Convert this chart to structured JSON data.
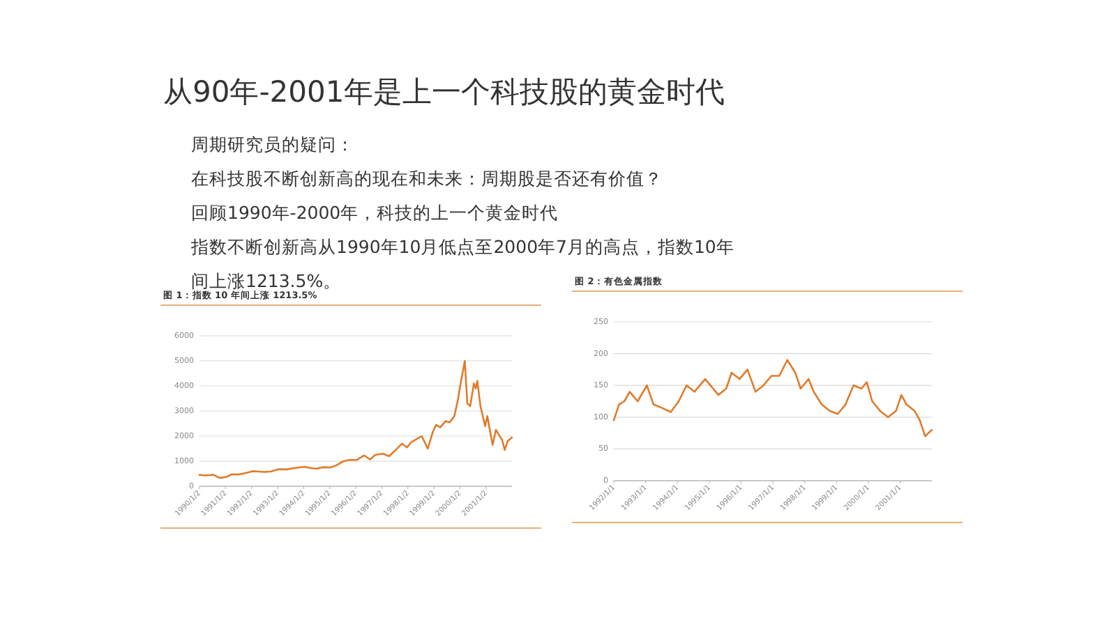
{
  "chart_data": [
    {
      "type": "other",
      "title": "从90年-2001年是上一个科技股的黄金时代",
      "annotations": [
        "周期研究员的疑问：",
        "在科技股不断创新高的现在和未来：周期股是否还有价值？",
        "回顾1990年-2000年，科技的上一个黄金时代",
        "指数不断创新高从1990年10月低点至2000年7月的高点，指数10年",
        "间上涨1213.5%。"
      ]
    },
    {
      "type": "line",
      "title": "图 1：指数 10 年间上涨 1213.5%",
      "grid": "y",
      "x": [
        "1990-01-02",
        "1990-04-01",
        "1990-07-15",
        "1990-10-15",
        "1991-01-15",
        "1991-04-01",
        "1991-07-01",
        "1991-10-01",
        "1992-01-15",
        "1992-04-01",
        "1992-07-01",
        "1992-10-01",
        "1993-01-15",
        "1993-05-01",
        "1993-09-01",
        "1994-01-15",
        "1994-04-15",
        "1994-07-01",
        "1994-10-01",
        "1995-01-15",
        "1995-04-01",
        "1995-07-15",
        "1995-10-01",
        "1996-01-15",
        "1996-05-01",
        "1996-07-20",
        "1996-10-01",
        "1997-01-15",
        "1997-04-15",
        "1997-07-15",
        "1997-10-10",
        "1997-12-20",
        "1998-02-15",
        "1998-04-15",
        "1998-07-15",
        "1998-10-08",
        "1998-12-15",
        "1999-02-01",
        "1999-04-01",
        "1999-06-15",
        "1999-08-10",
        "1999-10-15",
        "1999-12-01",
        "2000-01-05",
        "2000-03-10",
        "2000-04-14",
        "2000-05-25",
        "2000-07-15",
        "2000-08-10",
        "2000-09-01",
        "2000-10-15",
        "2000-12-20",
        "2001-01-20",
        "2001-02-20",
        "2001-04-04",
        "2001-05-20",
        "2001-07-01",
        "2001-08-15",
        "2001-09-21",
        "2001-11-01",
        "2001-12-31"
      ],
      "series": [
        {
          "color": "#e07b2a",
          "values": [
            455,
            430,
            460,
            330,
            375,
            480,
            470,
            520,
            600,
            590,
            570,
            590,
            680,
            670,
            730,
            780,
            720,
            700,
            760,
            750,
            830,
            1000,
            1050,
            1050,
            1230,
            1070,
            1250,
            1300,
            1200,
            1450,
            1700,
            1550,
            1750,
            1850,
            2000,
            1500,
            2150,
            2450,
            2350,
            2600,
            2550,
            2800,
            3400,
            4000,
            5000,
            3300,
            3200,
            4100,
            3900,
            4200,
            3200,
            2400,
            2800,
            2300,
            1650,
            2250,
            2050,
            1850,
            1450,
            1800,
            1950
          ]
        }
      ],
      "xlim": [
        "1990-01-02",
        "2001-12-31"
      ],
      "xticks": [
        {
          "value": "1990-01-02",
          "label": "1990/1/2"
        },
        {
          "value": "1991-01-02",
          "label": "1991/1/2"
        },
        {
          "value": "1992-01-02",
          "label": "1992/1/2"
        },
        {
          "value": "1993-01-02",
          "label": "1993/1/2"
        },
        {
          "value": "1994-01-02",
          "label": "1994/1/2"
        },
        {
          "value": "1995-01-02",
          "label": "1995/1/2"
        },
        {
          "value": "1996-01-02",
          "label": "1996/1/2"
        },
        {
          "value": "1997-01-02",
          "label": "1997/1/2"
        },
        {
          "value": "1998-01-02",
          "label": "1998/1/2"
        },
        {
          "value": "1999-01-02",
          "label": "1999/1/2"
        },
        {
          "value": "2000-01-02",
          "label": "2000/1/2"
        },
        {
          "value": "2001-01-02",
          "label": "2001/1/2"
        }
      ],
      "ylim": [
        0,
        6000
      ],
      "yticks": [
        0,
        1000,
        2000,
        3000,
        4000,
        5000,
        6000
      ]
    },
    {
      "type": "line",
      "title": "图 2：有色金属指数",
      "grid": "y",
      "x": [
        "1992-01-01",
        "1992-03-01",
        "1992-05-01",
        "1992-07-01",
        "1992-10-01",
        "1993-01-15",
        "1993-04-01",
        "1993-07-01",
        "1993-10-15",
        "1994-01-15",
        "1994-04-15",
        "1994-07-15",
        "1994-11-15",
        "1995-01-15",
        "1995-04-15",
        "1995-07-15",
        "1995-09-15",
        "1995-12-15",
        "1996-03-15",
        "1996-06-15",
        "1996-09-15",
        "1996-12-15",
        "1997-03-15",
        "1997-06-15",
        "1997-09-15",
        "1997-11-15",
        "1998-02-15",
        "1998-04-15",
        "1998-07-15",
        "1998-10-15",
        "1999-01-15",
        "1999-04-15",
        "1999-07-15",
        "1999-10-15",
        "1999-12-15",
        "2000-02-15",
        "2000-05-15",
        "2000-08-15",
        "2000-11-15",
        "2001-01-15",
        "2001-03-15",
        "2001-06-15",
        "2001-08-15",
        "2001-10-15",
        "2001-12-31"
      ],
      "series": [
        {
          "color": "#e07b2a",
          "values": [
            95,
            120,
            125,
            140,
            125,
            150,
            120,
            115,
            108,
            125,
            150,
            140,
            160,
            150,
            135,
            145,
            170,
            160,
            175,
            140,
            150,
            165,
            165,
            190,
            170,
            145,
            160,
            140,
            120,
            110,
            105,
            120,
            150,
            145,
            155,
            125,
            110,
            100,
            110,
            135,
            120,
            110,
            95,
            70,
            80
          ]
        }
      ],
      "xlim": [
        "1992-01-01",
        "2001-12-31"
      ],
      "xticks": [
        {
          "value": "1992-01-01",
          "label": "1992/1/1"
        },
        {
          "value": "1993-01-01",
          "label": "1993/1/1"
        },
        {
          "value": "1994-01-01",
          "label": "1994/1/1"
        },
        {
          "value": "1995-01-01",
          "label": "1995/1/1"
        },
        {
          "value": "1996-01-01",
          "label": "1996/1/1"
        },
        {
          "value": "1997-01-01",
          "label": "1997/1/1"
        },
        {
          "value": "1998-01-01",
          "label": "1998/1/1"
        },
        {
          "value": "1999-01-01",
          "label": "1999/1/1"
        },
        {
          "value": "2000-01-01",
          "label": "2000/1/1"
        },
        {
          "value": "2001-01-01",
          "label": "2001/1/1"
        }
      ],
      "ylim": [
        0,
        250
      ],
      "yticks": [
        0,
        50,
        100,
        150,
        200,
        250
      ]
    }
  ]
}
